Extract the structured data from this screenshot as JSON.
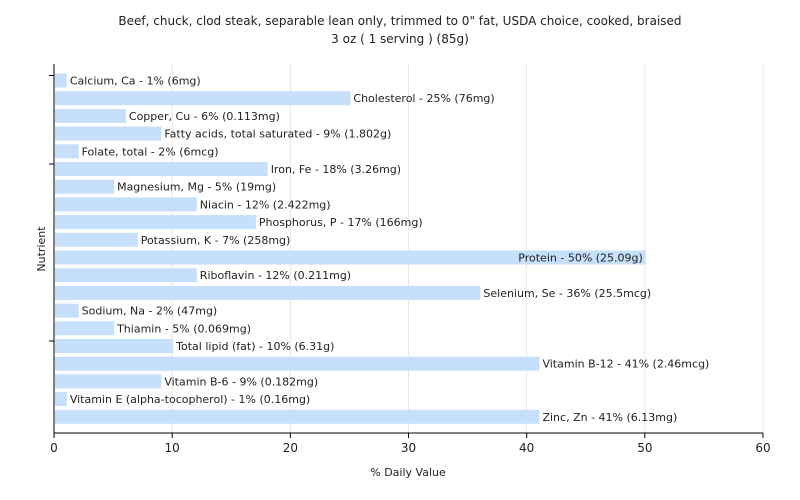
{
  "chart_data": {
    "type": "bar",
    "orientation": "horizontal",
    "title": "Beef, chuck, clod steak, separable lean only, trimmed to 0\" fat, USDA choice, cooked, braised",
    "subtitle": "3 oz ( 1 serving ) (85g)",
    "xlabel": "% Daily Value",
    "ylabel": "Nutrient",
    "xlim": [
      0,
      60
    ],
    "xticks": [
      0,
      10,
      20,
      30,
      40,
      50,
      60
    ],
    "grid": true,
    "bar_color": "#c6dffb",
    "categories": [
      "Calcium, Ca",
      "Cholesterol",
      "Copper, Cu",
      "Fatty acids, total saturated",
      "Folate, total",
      "Iron, Fe",
      "Magnesium, Mg",
      "Niacin",
      "Phosphorus, P",
      "Potassium, K",
      "Protein",
      "Riboflavin",
      "Selenium, Se",
      "Sodium, Na",
      "Thiamin",
      "Total lipid (fat)",
      "Vitamin B-12",
      "Vitamin B-6",
      "Vitamin E (alpha-tocopherol)",
      "Zinc, Zn"
    ],
    "values": [
      1,
      25,
      6,
      9,
      2,
      18,
      5,
      12,
      17,
      7,
      50,
      12,
      36,
      2,
      5,
      10,
      41,
      9,
      1,
      41
    ],
    "labels": [
      "Calcium, Ca - 1% (6mg)",
      "Cholesterol - 25% (76mg)",
      "Copper, Cu - 6% (0.113mg)",
      "Fatty acids, total saturated - 9% (1.802g)",
      "Folate, total - 2% (6mcg)",
      "Iron, Fe - 18% (3.26mg)",
      "Magnesium, Mg - 5% (19mg)",
      "Niacin - 12% (2.422mg)",
      "Phosphorus, P - 17% (166mg)",
      "Potassium, K - 7% (258mg)",
      "Protein - 50% (25.09g)",
      "Riboflavin - 12% (0.211mg)",
      "Selenium, Se - 36% (25.5mcg)",
      "Sodium, Na - 2% (47mg)",
      "Thiamin - 5% (0.069mg)",
      "Total lipid (fat) - 10% (6.31g)",
      "Vitamin B-12 - 41% (2.46mcg)",
      "Vitamin B-6 - 9% (0.182mg)",
      "Vitamin E (alpha-tocopherol) - 1% (0.16mg)",
      "Zinc, Zn - 41% (6.13mg)"
    ]
  }
}
